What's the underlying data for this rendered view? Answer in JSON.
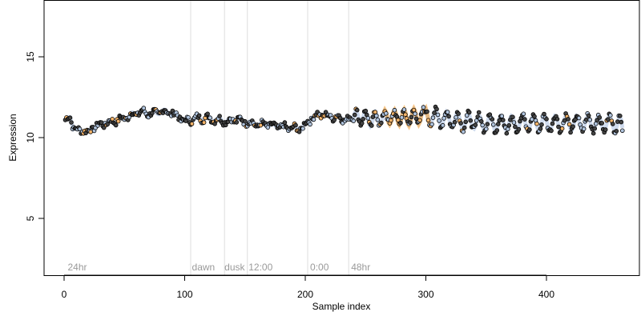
{
  "chart_data": {
    "type": "scatter",
    "title": "",
    "xlabel": "Sample index",
    "ylabel": "Expression",
    "xlim": [
      -15,
      480
    ],
    "ylim": [
      1.5,
      18.5
    ],
    "xticks": [
      0,
      100,
      200,
      300,
      400
    ],
    "yticks": [
      5,
      10,
      15
    ],
    "grid": false,
    "legend": "none",
    "colors": {
      "point_fill_default": "#b0c4de",
      "point_fill_dark": "#444444",
      "point_fill_highlight": "#f4b46a",
      "highlight_band": "#f2a13c",
      "blue_band": "#a8bde0",
      "vline": "#dddddd"
    },
    "vlines": [
      {
        "x": 105,
        "label": ""
      },
      {
        "x": 133,
        "label": ""
      },
      {
        "x": 152,
        "label": ""
      },
      {
        "x": 202,
        "label": ""
      },
      {
        "x": 236,
        "label": ""
      }
    ],
    "region_labels": [
      {
        "x": 3,
        "label": "24hr"
      },
      {
        "x": 106,
        "label": "dawn"
      },
      {
        "x": 133,
        "label": "dusk"
      },
      {
        "x": 153,
        "label": "12:00"
      },
      {
        "x": 204,
        "label": "0:00"
      },
      {
        "x": 238,
        "label": "48hr"
      }
    ],
    "series_anchors": [
      [
        1,
        11.0
      ],
      [
        5,
        11.3
      ],
      [
        8,
        10.6
      ],
      [
        12,
        10.4
      ],
      [
        16,
        10.5
      ],
      [
        20,
        10.3
      ],
      [
        25,
        10.7
      ],
      [
        30,
        10.8
      ],
      [
        35,
        10.9
      ],
      [
        40,
        11.0
      ],
      [
        45,
        11.1
      ],
      [
        50,
        11.2
      ],
      [
        55,
        11.4
      ],
      [
        60,
        11.5
      ],
      [
        65,
        11.6
      ],
      [
        70,
        11.5
      ],
      [
        75,
        11.5
      ],
      [
        80,
        11.6
      ],
      [
        85,
        11.6
      ],
      [
        90,
        11.5
      ],
      [
        95,
        11.3
      ],
      [
        100,
        11.0
      ],
      [
        105,
        11.1
      ],
      [
        110,
        11.2
      ],
      [
        115,
        11.2
      ],
      [
        120,
        11.2
      ],
      [
        125,
        11.1
      ],
      [
        130,
        11.1
      ],
      [
        135,
        11.0
      ],
      [
        140,
        11.1
      ],
      [
        145,
        11.1
      ],
      [
        150,
        11.0
      ],
      [
        155,
        10.9
      ],
      [
        160,
        10.8
      ],
      [
        165,
        10.8
      ],
      [
        170,
        10.8
      ],
      [
        175,
        10.7
      ],
      [
        180,
        10.7
      ],
      [
        185,
        10.6
      ],
      [
        190,
        10.6
      ],
      [
        195,
        10.5
      ],
      [
        200,
        10.8
      ],
      [
        205,
        11.2
      ],
      [
        210,
        11.4
      ],
      [
        215,
        11.4
      ],
      [
        220,
        11.3
      ],
      [
        225,
        11.3
      ],
      [
        230,
        11.2
      ],
      [
        235,
        11.1
      ],
      [
        240,
        11.2
      ],
      [
        245,
        11.3
      ],
      [
        250,
        11.2
      ],
      [
        255,
        11.1
      ],
      [
        260,
        11.2
      ],
      [
        265,
        11.2
      ],
      [
        270,
        11.3
      ],
      [
        275,
        11.2
      ],
      [
        280,
        11.3
      ],
      [
        285,
        11.2
      ],
      [
        290,
        11.3
      ],
      [
        295,
        11.3
      ],
      [
        300,
        11.3
      ],
      [
        305,
        11.3
      ],
      [
        310,
        11.2
      ],
      [
        315,
        11.2
      ],
      [
        320,
        11.1
      ],
      [
        325,
        11.1
      ],
      [
        330,
        11.0
      ],
      [
        335,
        11.0
      ],
      [
        340,
        11.0
      ],
      [
        345,
        10.9
      ],
      [
        350,
        10.9
      ],
      [
        355,
        10.9
      ],
      [
        360,
        10.9
      ],
      [
        365,
        10.9
      ],
      [
        370,
        10.9
      ],
      [
        375,
        10.9
      ],
      [
        380,
        10.9
      ],
      [
        385,
        10.9
      ],
      [
        390,
        10.9
      ],
      [
        395,
        10.9
      ],
      [
        400,
        10.9
      ],
      [
        405,
        10.9
      ],
      [
        410,
        10.9
      ],
      [
        415,
        10.9
      ],
      [
        420,
        10.9
      ],
      [
        425,
        10.9
      ],
      [
        430,
        10.9
      ],
      [
        435,
        10.9
      ],
      [
        440,
        10.9
      ],
      [
        445,
        10.9
      ],
      [
        450,
        10.9
      ],
      [
        455,
        10.9
      ],
      [
        460,
        10.9
      ],
      [
        463,
        10.6
      ]
    ],
    "oscillation": [
      {
        "from": 0,
        "to": 200,
        "amplitude": 0.15,
        "period": 9
      },
      {
        "from": 200,
        "to": 240,
        "amplitude": 0.15,
        "period": 9
      },
      {
        "from": 240,
        "to": 300,
        "amplitude": 0.45,
        "period": 8
      },
      {
        "from": 300,
        "to": 463,
        "amplitude": 0.5,
        "period": 9
      }
    ],
    "n_points": 463
  }
}
